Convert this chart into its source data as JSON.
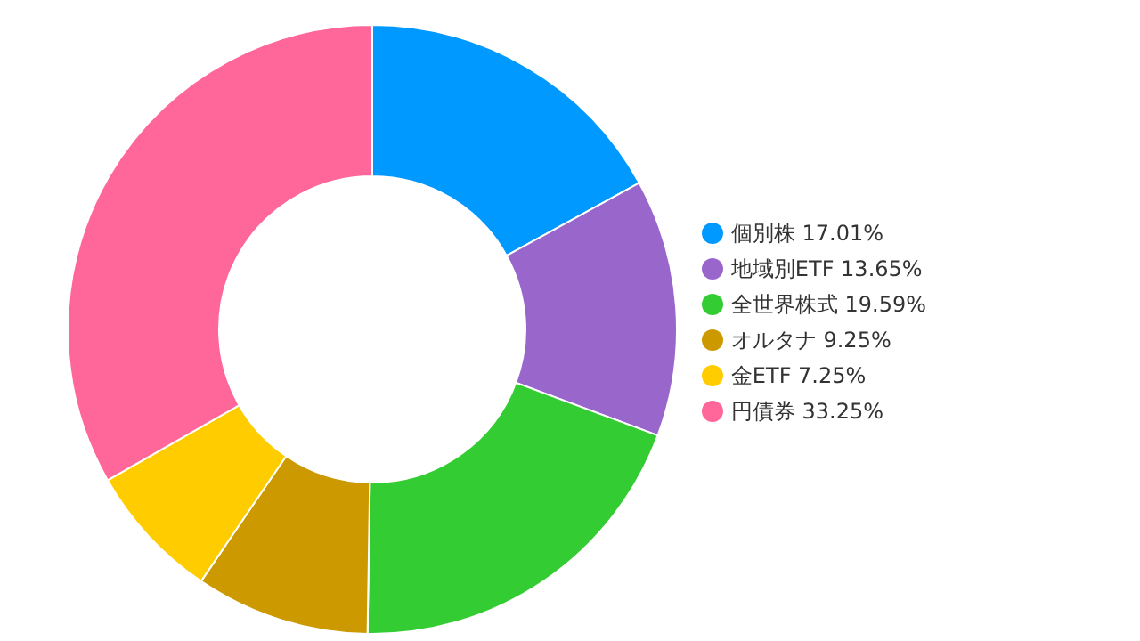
{
  "chart_data": {
    "type": "donut",
    "categories": [
      "個別株",
      "地域別ETF",
      "全世界株式",
      "オルタナ",
      "金ETF",
      "円債券"
    ],
    "values": [
      17.01,
      13.65,
      19.59,
      9.25,
      7.25,
      33.25
    ],
    "value_labels": [
      "17.01%",
      "13.65%",
      "19.59%",
      "9.25%",
      "7.25%",
      "33.25%"
    ],
    "colors": [
      "#0099ff",
      "#9966cc",
      "#33cc33",
      "#cc9900",
      "#ffcc00",
      "#ff6699"
    ],
    "legend": "right"
  }
}
